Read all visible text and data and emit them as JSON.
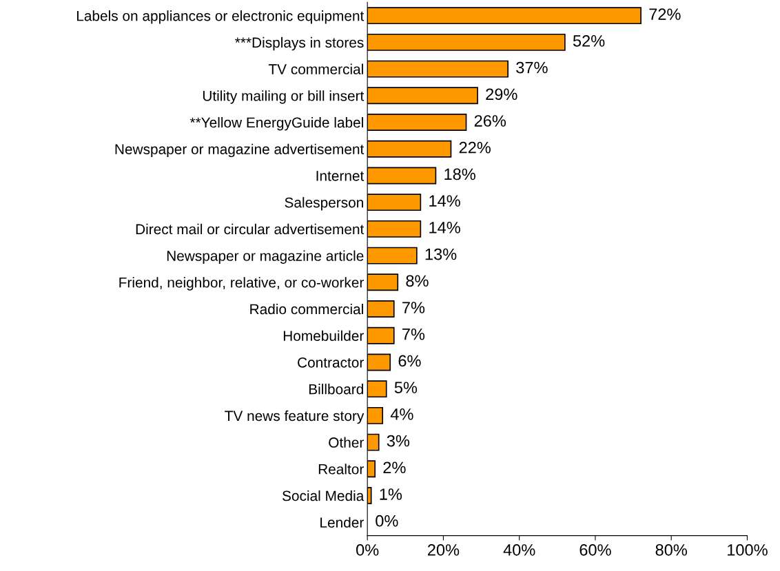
{
  "chart_data": {
    "type": "bar",
    "orientation": "horizontal",
    "categories": [
      "Labels on appliances or electronic equipment",
      "***Displays in stores",
      "TV commercial",
      "Utility mailing or bill insert",
      "**Yellow EnergyGuide label",
      "Newspaper or magazine advertisement",
      "Internet",
      "Salesperson",
      "Direct mail or circular advertisement",
      "Newspaper or magazine article",
      "Friend, neighbor, relative, or co-worker",
      "Radio commercial",
      "Homebuilder",
      "Contractor",
      "Billboard",
      "TV news feature story",
      "Other",
      "Realtor",
      "Social Media",
      "Lender"
    ],
    "values": [
      72,
      52,
      37,
      29,
      26,
      22,
      18,
      14,
      14,
      13,
      8,
      7,
      7,
      6,
      5,
      4,
      3,
      2,
      1,
      0
    ],
    "value_labels": [
      "72%",
      "52%",
      "37%",
      "29%",
      "26%",
      "22%",
      "18%",
      "14%",
      "14%",
      "13%",
      "8%",
      "7%",
      "7%",
      "6%",
      "5%",
      "4%",
      "3%",
      "2%",
      "1%",
      "0%"
    ],
    "color": "#ff9900",
    "xlim": [
      0,
      100
    ],
    "xticks": [
      {
        "value": 0,
        "label": "0%"
      },
      {
        "value": 20,
        "label": "20%"
      },
      {
        "value": 40,
        "label": "40%"
      },
      {
        "value": 60,
        "label": "60%"
      },
      {
        "value": 80,
        "label": "80%"
      },
      {
        "value": 100,
        "label": "100%"
      }
    ],
    "grid": false
  }
}
